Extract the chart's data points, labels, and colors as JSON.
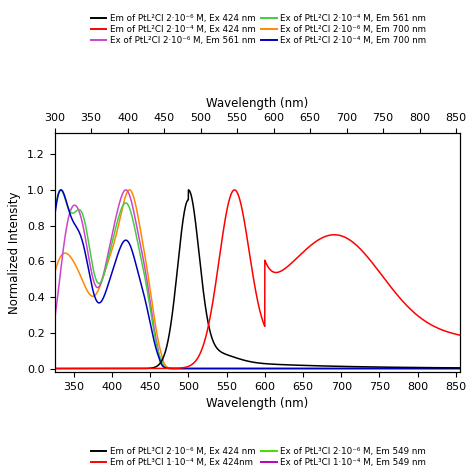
{
  "xlabel": "Wavelength (nm)",
  "ylabel": "Normalized Intensity",
  "xlim": [
    325,
    855
  ],
  "ylim": [
    -0.02,
    1.32
  ],
  "xticks": [
    350,
    400,
    450,
    500,
    550,
    600,
    650,
    700,
    750,
    800,
    850
  ],
  "yticks": [
    0.0,
    0.2,
    0.4,
    0.6,
    0.8,
    1.0,
    1.2
  ],
  "top_xticks": [
    300,
    350,
    400,
    450,
    500,
    550,
    600,
    650,
    700,
    750,
    800,
    850
  ],
  "top_xlabel": "Wavelength (nm)",
  "colors": {
    "em_dilute": "#000000",
    "em_conc": "#ff0000",
    "ex_dilute_561": "#cc44cc",
    "ex_conc_561": "#44cc44",
    "ex_dilute_700": "#ff8800",
    "ex_conc_700": "#0000bb"
  },
  "top_legend_left": [
    "Em of PtL²Cl 2·10⁻⁶ M, Ex 424 nm",
    "Ex of PtL²Cl 2·10⁻⁶ M, Em 561 nm",
    "Ex of PtL²Cl 2·10⁻⁶ M, Em 700 nm"
  ],
  "top_legend_right": [
    "Em of PtL²Cl 2·10⁻⁴ M, Ex 424 nm",
    "Ex of PtL²Cl 2·10⁻⁴ M, Em 561 nm",
    "Ex of PtL²Cl 2·10⁻⁴ M, Em 700 nm"
  ],
  "top_legend_colors_left": [
    "#000000",
    "#cc44cc",
    "#ff8800"
  ],
  "top_legend_colors_right": [
    "#ff0000",
    "#44cc44",
    "#0000bb"
  ],
  "bot_legend_left": [
    "Em of PtL³Cl 2·10⁻⁶ M, Ex 424 nm",
    "Ex of PtL³Cl 2·10⁻⁶ M, Em 549 nm"
  ],
  "bot_legend_right": [
    "Em of PtL³Cl 1·10⁻⁴ M, Ex 424nm",
    "Ex of PtL³Cl 1·10⁻⁴ M, Em 549 nm"
  ],
  "bot_legend_colors_left": [
    "#000000",
    "#44dd00"
  ],
  "bot_legend_colors_right": [
    "#ff0000",
    "#bb00bb"
  ],
  "figsize": [
    4.74,
    4.74
  ],
  "dpi": 100
}
